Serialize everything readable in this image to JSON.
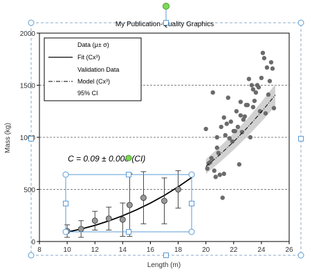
{
  "chart_data": {
    "type": "scatter",
    "title": "My Publication-Quality Graphics",
    "xlabel": "Length (m)",
    "ylabel": "Mass (kg)",
    "xlim": [
      8,
      26
    ],
    "ylim": [
      0,
      2000
    ],
    "xticks": [
      8,
      10,
      12,
      14,
      16,
      18,
      20,
      22,
      24,
      26
    ],
    "yticks": [
      0,
      500,
      1000,
      1500,
      2000
    ],
    "grid": "horizontal dashed",
    "legend_position": "top-left",
    "annotation": "C = 0.09 ± 0.008 (CI)",
    "colors": {
      "points": "#6b6b6b",
      "ci_band": "#cccccc",
      "line": "#000000",
      "selection": "#5a9bd5",
      "handle_green": "#7ed957"
    },
    "series": [
      {
        "name": "Data (μ± σ)",
        "kind": "errorbar",
        "x": [
          10,
          11,
          12,
          13,
          14,
          14.5,
          15.5,
          17,
          18
        ],
        "y": [
          100,
          120,
          200,
          220,
          210,
          350,
          420,
          390,
          500
        ],
        "err": [
          60,
          80,
          90,
          110,
          160,
          300,
          250,
          220,
          180
        ]
      },
      {
        "name": "Fit (Cx³)",
        "kind": "line",
        "x": [
          10,
          11,
          12,
          13,
          14,
          15,
          16,
          17,
          18,
          19
        ],
        "y": [
          90,
          120,
          155,
          198,
          247,
          304,
          369,
          442,
          525,
          617
        ]
      },
      {
        "name": "Validation Data",
        "kind": "scatter",
        "x": [
          20.0,
          20.1,
          20.2,
          20.3,
          20.4,
          20.5,
          20.6,
          20.7,
          20.8,
          20.9,
          21.0,
          21.1,
          21.2,
          21.3,
          21.4,
          21.5,
          21.6,
          21.7,
          21.8,
          21.9,
          22.0,
          22.1,
          22.2,
          22.3,
          22.4,
          22.5,
          22.6,
          22.7,
          22.8,
          22.9,
          23.0,
          23.1,
          23.2,
          23.3,
          23.4,
          23.5,
          23.6,
          23.7,
          23.8,
          23.9,
          24.0,
          24.1,
          24.2,
          24.3,
          24.4,
          24.5,
          24.6,
          24.7,
          24.8,
          24.9,
          20.8,
          21.3,
          22.5,
          23.4
        ],
        "y": [
          1080,
          700,
          750,
          760,
          800,
          1430,
          680,
          620,
          1000,
          850,
          640,
          1100,
          420,
          650,
          1020,
          1130,
          1380,
          990,
          1150,
          960,
          1060,
          1060,
          1250,
          1100,
          740,
          1210,
          1050,
          1170,
          1200,
          1310,
          1310,
          1560,
          1000,
          1500,
          1290,
          1350,
          1430,
          1500,
          1480,
          1250,
          1570,
          1810,
          1760,
          1230,
          1670,
          1410,
          1540,
          1720,
          1660,
          1280,
          900,
          1190,
          1340,
          1460
        ]
      },
      {
        "name": "Model (Cx³)",
        "kind": "dashdot",
        "x": [
          20,
          21,
          22,
          23,
          24,
          25
        ],
        "y": [
          720,
          833,
          958,
          1095,
          1244,
          1406
        ]
      },
      {
        "name": "95% CI",
        "kind": "band",
        "x": [
          20,
          21,
          22,
          23,
          24,
          25
        ],
        "lower": [
          650,
          760,
          880,
          1010,
          1150,
          1300
        ],
        "upper": [
          790,
          910,
          1040,
          1180,
          1340,
          1510
        ]
      }
    ]
  }
}
